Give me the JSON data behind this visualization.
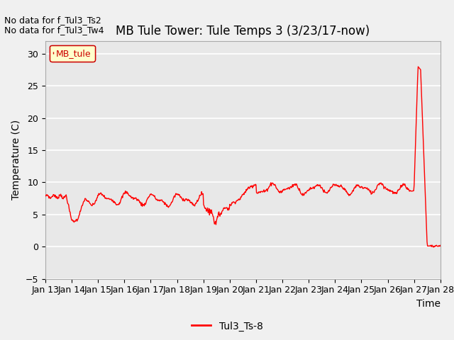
{
  "title": "MB Tule Tower: Tule Temps 3 (3/23/17-now)",
  "xlabel": "Time",
  "ylabel": "Temperature (C)",
  "ylim": [
    -5,
    32
  ],
  "yticks": [
    -5,
    0,
    5,
    10,
    15,
    20,
    25,
    30
  ],
  "xtick_labels": [
    "Jan 13",
    "Jan 14",
    "Jan 15",
    "Jan 16",
    "Jan 17",
    "Jan 18",
    "Jan 19",
    "Jan 20",
    "Jan 21",
    "Jan 22",
    "Jan 23",
    "Jan 24",
    "Jan 25",
    "Jan 26",
    "Jan 27",
    "Jan 28"
  ],
  "line_color": "#ff0000",
  "line_label": "Tul3_Ts-8",
  "legend_box_label": "MB_tule",
  "legend_box_facecolor": "#ffffcc",
  "legend_box_edgecolor": "#cc0000",
  "no_data_text1": "No data for f_Tul3_Ts2",
  "no_data_text2": "No data for f_Tul3_Tw4",
  "fig_facecolor": "#f0f0f0",
  "plot_bg_color": "#e8e8e8",
  "grid_color": "#ffffff",
  "title_fontsize": 12,
  "axis_label_fontsize": 10,
  "tick_fontsize": 9,
  "no_data_fontsize": 9
}
